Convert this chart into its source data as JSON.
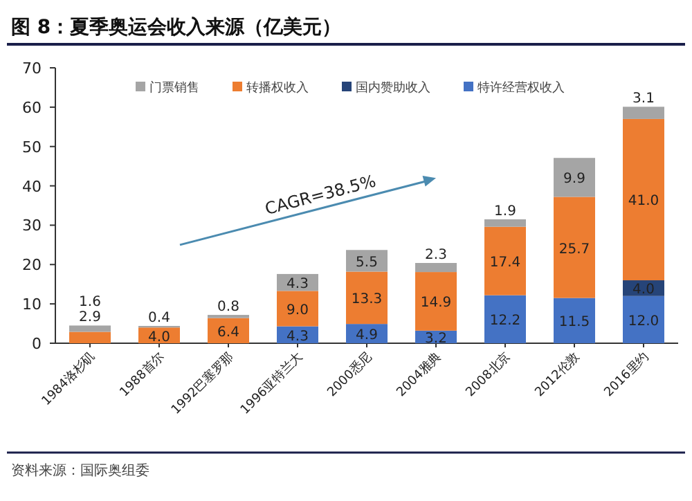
{
  "chart_data": {
    "type": "bar",
    "stacked": true,
    "title": "图 8：夏季奥运会收入来源（亿美元）",
    "categories": [
      "1984洛杉矶",
      "1988首尔",
      "1992巴塞罗那",
      "1996亚特兰大",
      "2000悉尼",
      "2004雅典",
      "2008北京",
      "2012伦敦",
      "2016里约"
    ],
    "series": [
      {
        "name": "特许经营权收入",
        "color": "#4472c4",
        "values": [
          null,
          null,
          null,
          4.3,
          4.9,
          3.2,
          12.2,
          11.5,
          12.0
        ],
        "value_labels": [
          null,
          null,
          null,
          "4.3",
          "4.9",
          "3.2",
          "12.2",
          "11.5",
          "12.0"
        ]
      },
      {
        "name": "国内赞助收入",
        "color": "#264478",
        "values": [
          null,
          null,
          null,
          null,
          null,
          null,
          null,
          null,
          4.0
        ],
        "value_labels": [
          null,
          null,
          null,
          null,
          null,
          null,
          null,
          null,
          "4.0"
        ]
      },
      {
        "name": "转播权收入",
        "color": "#ed7d31",
        "values": [
          2.9,
          4.0,
          6.4,
          9.0,
          13.3,
          14.9,
          17.4,
          25.7,
          41.0
        ],
        "value_labels": [
          "2.9",
          "4.0",
          "6.4",
          "9.0",
          "13.3",
          "14.9",
          "17.4",
          "25.7",
          "41.0"
        ]
      },
      {
        "name": "门票销售",
        "color": "#a5a5a5",
        "values": [
          1.6,
          0.4,
          0.8,
          4.3,
          5.5,
          2.3,
          1.9,
          9.9,
          3.1
        ],
        "value_labels": [
          "1.6",
          "0.4",
          "0.8",
          "4.3",
          "5.5",
          "2.3",
          "1.9",
          "9.9",
          "3.1"
        ]
      }
    ],
    "ylim": [
      0,
      70
    ],
    "yticks": [
      0,
      10,
      20,
      30,
      40,
      50,
      60,
      70
    ],
    "legend": "top",
    "grid": false,
    "annotations": [
      "CAGR=38.5%",
      "资料来源：国际奥组委"
    ]
  }
}
